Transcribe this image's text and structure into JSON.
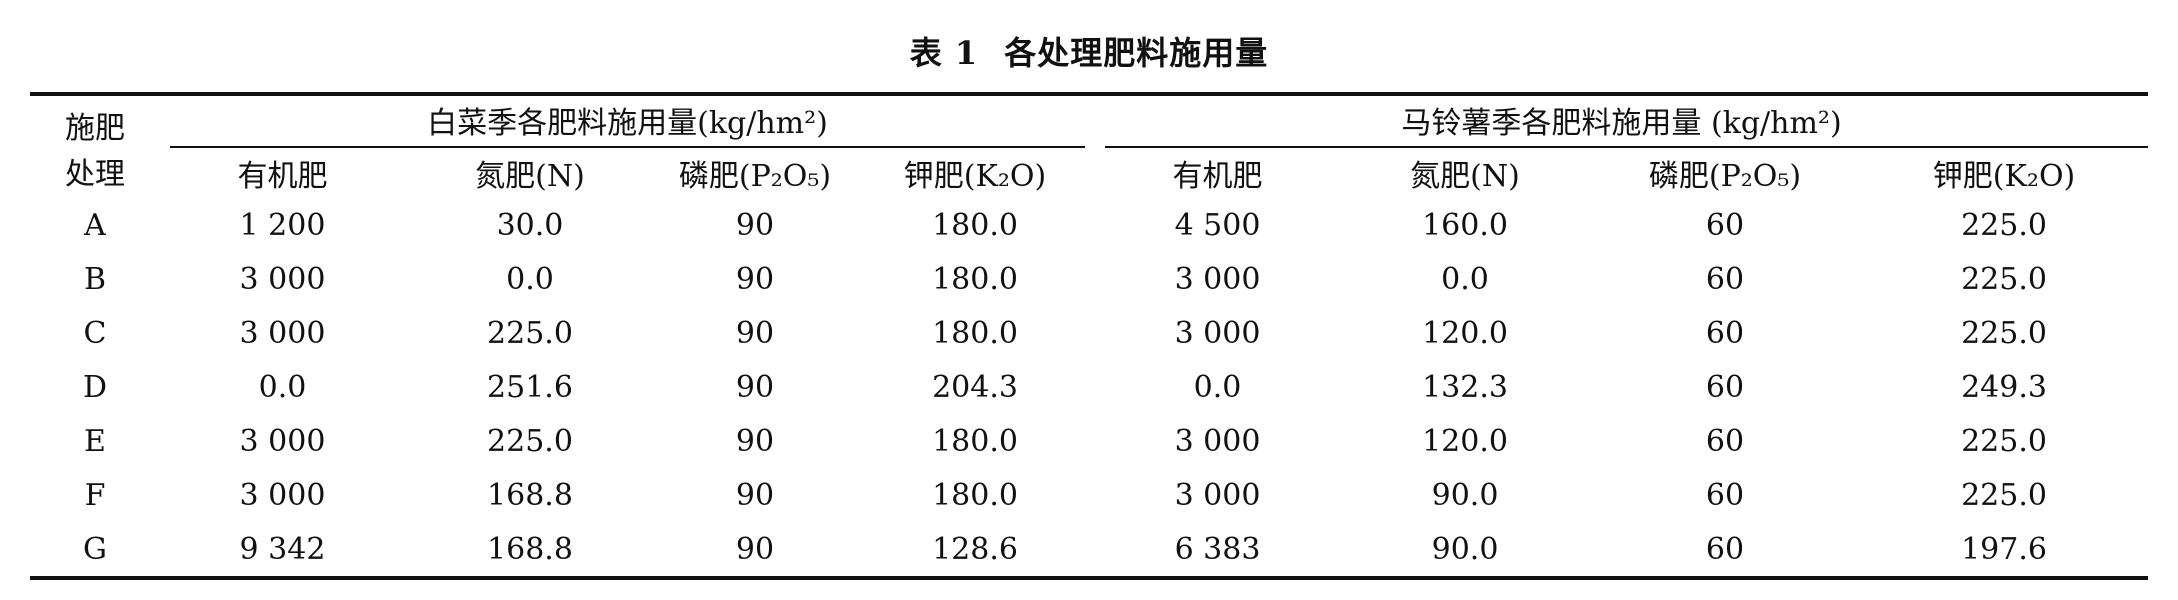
{
  "caption": {
    "number": "表 1",
    "title": "各处理肥料施用量"
  },
  "header": {
    "row_label_line1": "施肥",
    "row_label_line2": "处理",
    "group_cabbage": "白菜季各肥料施用量(kg/hm²)",
    "group_potato": "马铃薯季各肥料施用量 (kg/hm²)",
    "sub_cols": [
      "有机肥",
      "氮肥(N)",
      "磷肥(P₂O₅)",
      "钾肥(K₂O)"
    ]
  },
  "rows": [
    {
      "id": "A",
      "cabbage": [
        "1 200",
        "30.0",
        "90",
        "180.0"
      ],
      "potato": [
        "4 500",
        "160.0",
        "60",
        "225.0"
      ]
    },
    {
      "id": "B",
      "cabbage": [
        "3 000",
        "0.0",
        "90",
        "180.0"
      ],
      "potato": [
        "3 000",
        "0.0",
        "60",
        "225.0"
      ]
    },
    {
      "id": "C",
      "cabbage": [
        "3 000",
        "225.0",
        "90",
        "180.0"
      ],
      "potato": [
        "3 000",
        "120.0",
        "60",
        "225.0"
      ]
    },
    {
      "id": "D",
      "cabbage": [
        "0.0",
        "251.6",
        "90",
        "204.3"
      ],
      "potato": [
        "0.0",
        "132.3",
        "60",
        "249.3"
      ]
    },
    {
      "id": "E",
      "cabbage": [
        "3 000",
        "225.0",
        "90",
        "180.0"
      ],
      "potato": [
        "3 000",
        "120.0",
        "60",
        "225.0"
      ]
    },
    {
      "id": "F",
      "cabbage": [
        "3 000",
        "168.8",
        "90",
        "180.0"
      ],
      "potato": [
        "3 000",
        "90.0",
        "60",
        "225.0"
      ]
    },
    {
      "id": "G",
      "cabbage": [
        "9 342",
        "168.8",
        "90",
        "128.6"
      ],
      "potato": [
        "6 383",
        "90.0",
        "60",
        "197.6"
      ]
    }
  ]
}
